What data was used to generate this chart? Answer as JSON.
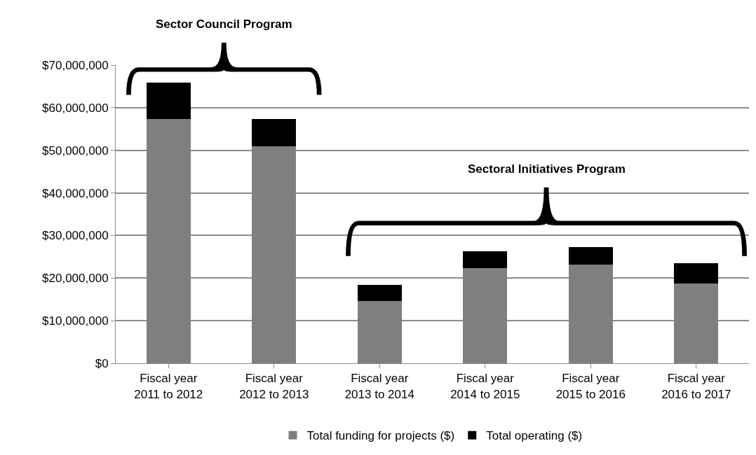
{
  "chart_data": {
    "type": "bar",
    "stacked": true,
    "categories": [
      "Fiscal year\n2011 to 2012",
      "Fiscal year\n2012 to 2013",
      "Fiscal year\n2013 to 2014",
      "Fiscal year\n2014 to 2015",
      "Fiscal year\n2015 to 2016",
      "Fiscal year\n2016 to 2017"
    ],
    "series": [
      {
        "name": "Total funding for projects ($)",
        "color": "#7f7f7f",
        "values": [
          57300000,
          50900000,
          14700000,
          22400000,
          23100000,
          18800000
        ]
      },
      {
        "name": "Total operating ($)",
        "color": "#000000",
        "values": [
          8600000,
          6400000,
          3700000,
          3900000,
          4100000,
          4700000
        ]
      }
    ],
    "ylim": [
      0,
      70000000
    ],
    "yticks": [
      {
        "value": 0,
        "label": "$0"
      },
      {
        "value": 10000000,
        "label": "$10,000,000"
      },
      {
        "value": 20000000,
        "label": "$20,000,000"
      },
      {
        "value": 30000000,
        "label": "$30,000,000"
      },
      {
        "value": 40000000,
        "label": "$40,000,000"
      },
      {
        "value": 50000000,
        "label": "$50,000,000"
      },
      {
        "value": 60000000,
        "label": "$60,000,000"
      },
      {
        "value": 70000000,
        "label": "$70,000,000"
      }
    ],
    "grid": "y",
    "legend": "bottom",
    "annotations": [
      "Sector Council Program",
      "Sectoral Initiatives Program"
    ]
  }
}
